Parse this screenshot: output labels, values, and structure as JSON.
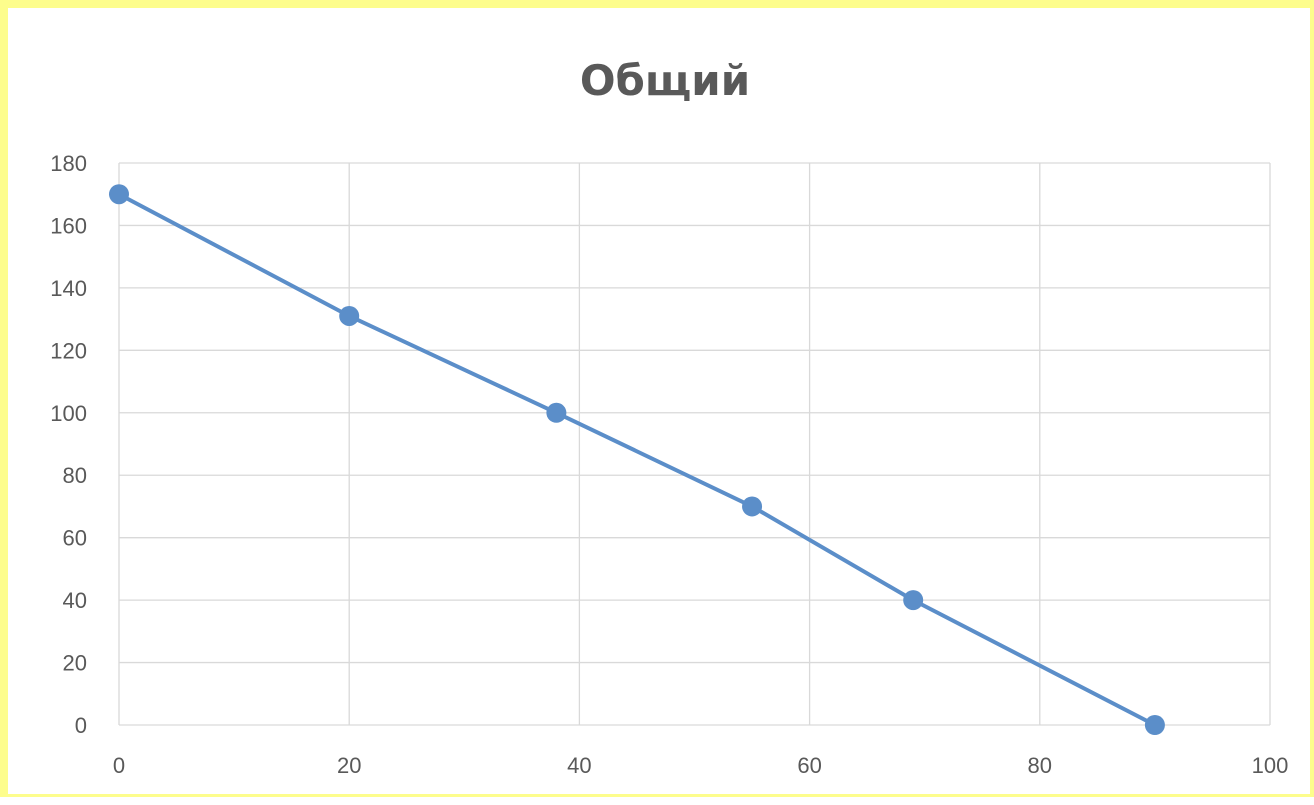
{
  "chart_data": {
    "type": "scatter",
    "title": "Общий",
    "xlabel": "",
    "ylabel": "",
    "xlim": [
      0,
      100
    ],
    "ylim": [
      0,
      180
    ],
    "x_ticks": [
      0,
      20,
      40,
      60,
      80,
      100
    ],
    "y_ticks": [
      0,
      20,
      40,
      60,
      80,
      100,
      120,
      140,
      160,
      180
    ],
    "grid": true,
    "series": [
      {
        "x": [
          0,
          20,
          38,
          55,
          69,
          90
        ],
        "y": [
          170,
          131,
          100,
          70,
          40,
          0
        ],
        "color": "#5b8ec9",
        "line": true,
        "markers": true
      }
    ]
  }
}
